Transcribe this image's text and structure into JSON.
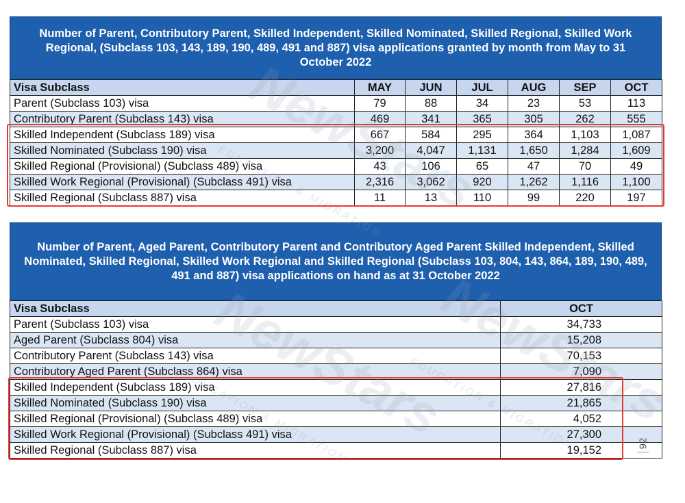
{
  "table1": {
    "title": "Number of Parent, Contributory Parent, Skilled Independent, Skilled Nominated, Skilled Regional, Skilled Work Regional, (Subclass 103, 143, 189, 190, 489, 491 and 887) visa applications granted by month from May to 31 October 2022",
    "headers": [
      "Visa Subclass",
      "MAY",
      "JUN",
      "JUL",
      "AUG",
      "SEP",
      "OCT"
    ],
    "rows": [
      [
        "Parent (Subclass 103) visa",
        "79",
        "88",
        "34",
        "23",
        "53",
        "113"
      ],
      [
        "Contributory Parent (Subclass 143) visa",
        "469",
        "341",
        "365",
        "305",
        "262",
        "555"
      ],
      [
        "Skilled Independent (Subclass 189) visa",
        "667",
        "584",
        "295",
        "364",
        "1,103",
        "1,087"
      ],
      [
        "Skilled Nominated (Subclass 190) visa",
        "3,200",
        "4,047",
        "1,131",
        "1,650",
        "1,284",
        "1,609"
      ],
      [
        "Skilled Regional (Provisional) (Subclass 489) visa",
        "43",
        "106",
        "65",
        "47",
        "70",
        "49"
      ],
      [
        "Skilled Work Regional (Provisional) (Subclass 491) visa",
        "2,316",
        "3,062",
        "920",
        "1,262",
        "1,116",
        "1,100"
      ],
      [
        "Skilled Regional (Subclass 887) visa",
        "11",
        "13",
        "110",
        "99",
        "220",
        "197"
      ]
    ]
  },
  "table2": {
    "title": "Number of Parent, Aged Parent, Contributory Parent and Contributory Aged Parent Skilled Independent, Skilled Nominated, Skilled Regional, Skilled Work Regional and Skilled Regional (Subclass 103, 804, 143, 864, 189, 190, 489, 491 and 887) visa applications on hand as at 31 October 2022",
    "headers": [
      "Visa Subclass",
      "OCT"
    ],
    "rows": [
      [
        "Parent (Subclass 103) visa",
        "34,733"
      ],
      [
        "Aged Parent (Subclass 804) visa",
        "15,208"
      ],
      [
        "Contributory Parent (Subclass 143) visa",
        "70,153"
      ],
      [
        "Contributory Aged Parent (Subclass 864) visa",
        "7,090"
      ],
      [
        "Skilled Independent (Subclass 189) visa",
        "27,816"
      ],
      [
        "Skilled Nominated (Subclass 190) visa",
        "21,865"
      ],
      [
        "Skilled Regional (Provisional) (Subclass 489) visa",
        "4,052"
      ],
      [
        "Skilled Work Regional (Provisional) (Subclass 491) visa",
        "27,300"
      ],
      [
        "Skilled Regional (Subclass 887) visa",
        "19,152"
      ]
    ]
  },
  "watermark": {
    "brand": "NewStars",
    "sub": "EDUCATION & MIGRATION"
  },
  "page_number": "92",
  "colors": {
    "header_bg": "#1e5fae",
    "row_alt": "#dbe6f5",
    "highlight": "#e53935"
  }
}
